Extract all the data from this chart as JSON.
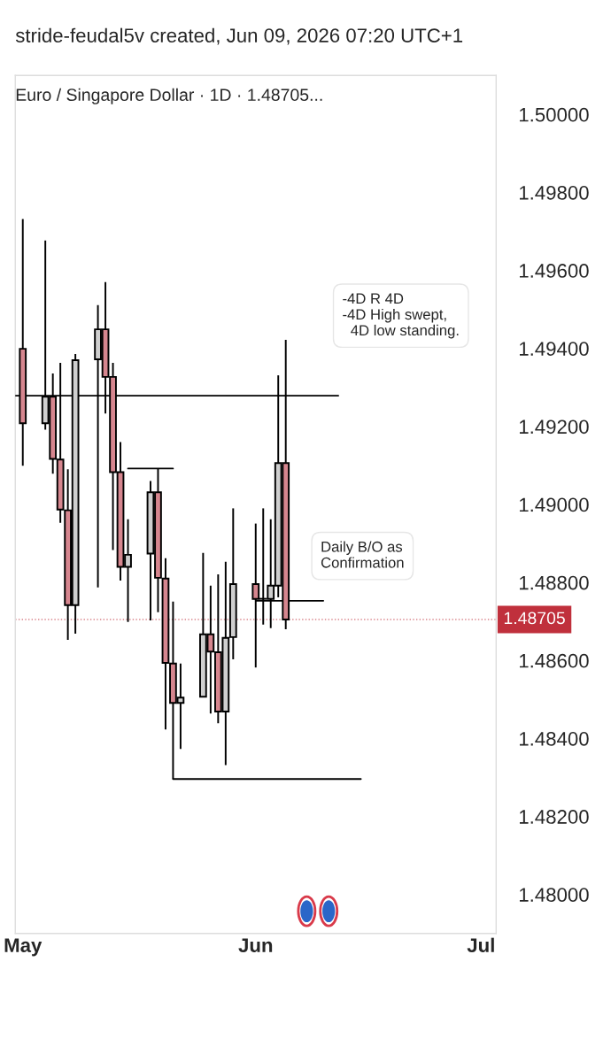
{
  "chart_data": {
    "type": "candlestick",
    "title": "stride-feudal5v created, Jun 09, 2026 07:20 UTC+1",
    "subtitle": "Euro / Singapore Dollar · 1D · 1.48705...",
    "x": [
      "2026-05-01",
      "2026-05-04",
      "2026-05-05",
      "2026-05-06",
      "2026-05-07",
      "2026-05-08",
      "2026-05-11",
      "2026-05-12",
      "2026-05-13",
      "2026-05-14",
      "2026-05-15",
      "2026-05-18",
      "2026-05-19",
      "2026-05-20",
      "2026-05-21",
      "2026-05-22",
      "2026-05-25",
      "2026-05-26",
      "2026-05-27",
      "2026-05-28",
      "2026-05-29",
      "2026-06-01",
      "2026-06-02",
      "2026-06-03",
      "2026-06-04",
      "2026-06-05"
    ],
    "ohlc": [
      [
        1.49399,
        1.49732,
        1.49099,
        1.49208
      ],
      [
        1.49208,
        1.49677,
        1.49192,
        1.49276
      ],
      [
        1.49276,
        1.49336,
        1.49079,
        1.49117
      ],
      [
        1.49115,
        1.49363,
        1.48953,
        1.48987
      ],
      [
        1.48985,
        1.4909,
        1.48653,
        1.48742
      ],
      [
        1.48742,
        1.49386,
        1.48669,
        1.4937
      ],
      [
        1.49372,
        1.49511,
        1.48787,
        1.49449
      ],
      [
        1.49449,
        1.4957,
        1.49233,
        1.49327
      ],
      [
        1.49327,
        1.49363,
        1.48883,
        1.49083
      ],
      [
        1.49083,
        1.4916,
        1.48805,
        1.4884
      ],
      [
        1.4884,
        1.48962,
        1.48699,
        1.48871
      ],
      [
        1.48874,
        1.4906,
        1.48703,
        1.49031
      ],
      [
        1.49031,
        1.49092,
        1.48724,
        1.48812
      ],
      [
        1.4881,
        1.48862,
        1.48423,
        1.48594
      ],
      [
        1.48592,
        1.48751,
        1.48296,
        1.48491
      ],
      [
        1.48491,
        1.48592,
        1.48373,
        1.48505
      ],
      [
        1.48507,
        1.48876,
        1.48507,
        1.48667
      ],
      [
        1.48667,
        1.48792,
        1.48464,
        1.48623
      ],
      [
        1.48621,
        1.48821,
        1.48439,
        1.48469
      ],
      [
        1.48469,
        1.48853,
        1.48332,
        1.48658
      ],
      [
        1.4866,
        1.4899,
        1.48603,
        1.48796
      ],
      [
        1.48796,
        1.48951,
        1.48582,
        1.48758
      ],
      [
        1.48758,
        1.4899,
        1.48692,
        1.48758
      ],
      [
        1.48758,
        1.48962,
        1.48683,
        1.48792
      ],
      [
        1.48792,
        1.49331,
        1.48762,
        1.49106
      ],
      [
        1.49106,
        1.49422,
        1.4868,
        1.48705
      ]
    ],
    "colors": [
      "#d6868f",
      "#cfcfcf",
      "#d6868f",
      "#d6868f",
      "#d6868f",
      "#cfcfcf",
      "#cfcfcf",
      "#d6868f",
      "#d6868f",
      "#d6868f",
      "#cfcfcf",
      "#cfcfcf",
      "#d6868f",
      "#d6868f",
      "#d6868f",
      "#cfcfcf",
      "#cfcfcf",
      "#d6868f",
      "#d6868f",
      "#cfcfcf",
      "#cfcfcf",
      "#d6868f",
      "#cfcfcf",
      "#cfcfcf",
      "#cfcfcf",
      "#d6868f"
    ],
    "series": [
      {
        "type": "line",
        "color": "#000000",
        "x": [
          "2026-04-30",
          "2026-06-12"
        ],
        "values": [
          1.49279,
          1.49279
        ]
      },
      {
        "type": "line",
        "color": "#000000",
        "x": [
          "2026-05-15",
          "2026-05-21"
        ],
        "values": [
          1.49092,
          1.49092
        ]
      },
      {
        "type": "line",
        "color": "#000000",
        "x": [
          "2026-05-21",
          "2026-06-15"
        ],
        "values": [
          1.48296,
          1.48296
        ]
      },
      {
        "type": "line",
        "color": "#000000",
        "x": [
          "2026-06-01",
          "2026-06-10"
        ],
        "values": [
          1.48753,
          1.48753
        ]
      }
    ],
    "ref_lines": [
      {
        "axis": "y",
        "value": 1.48705,
        "label": "1.48705",
        "color": "#c0303c",
        "line_style": "dotted"
      }
    ],
    "annotations": [
      "-4D R 4D\n-4D High swept,\n  4D low standing.",
      "Daily B/O as\nConfirmation"
    ],
    "xlim": [
      "2026-04-30",
      "2026-07-03"
    ],
    "xticks": [
      {
        "value": "2026-05-01",
        "label": "May"
      },
      {
        "value": "2026-06-01",
        "label": "Jun"
      },
      {
        "value": "2026-07-01",
        "label": "Jul"
      }
    ],
    "ylim": [
      1.479,
      1.501
    ],
    "yticks": [
      {
        "value": 1.48,
        "label": "1.48000"
      },
      {
        "value": 1.482,
        "label": "1.48200"
      },
      {
        "value": 1.484,
        "label": "1.48400"
      },
      {
        "value": 1.486,
        "label": "1.48600"
      },
      {
        "value": 1.488,
        "label": "1.48800"
      },
      {
        "value": 1.49,
        "label": "1.49000"
      },
      {
        "value": 1.492,
        "label": "1.49200"
      },
      {
        "value": 1.494,
        "label": "1.49400"
      },
      {
        "value": 1.496,
        "label": "1.49600"
      },
      {
        "value": 1.498,
        "label": "1.49800"
      },
      {
        "value": 1.5,
        "label": "1.50000"
      }
    ]
  }
}
